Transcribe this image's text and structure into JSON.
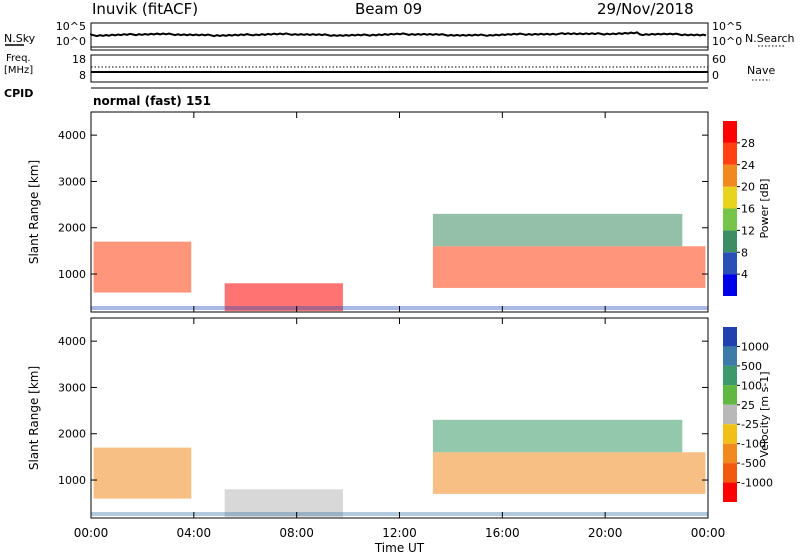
{
  "header": {
    "station": "Inuvik (fitACF)",
    "beam": "Beam 09",
    "date": "29/Nov/2018"
  },
  "summary": {
    "nsky_label": "N.Sky",
    "nsearch_label": "N.Search",
    "freq_label_line1": "Freq.",
    "freq_label_line2": "[MHz]",
    "nave_label": "Nave",
    "cpid_label": "CPID",
    "program": "normal (fast) 151",
    "noise_ticks_left": [
      "10^5",
      "10^0"
    ],
    "noise_ticks_right": [
      "10^5",
      "10^0"
    ],
    "freq_ticks": [
      "18",
      "8"
    ],
    "nave_ticks": [
      "60",
      "0"
    ]
  },
  "chart_data": [
    {
      "type": "heatmap",
      "name": "power",
      "ylabel": "Slant Range [km]",
      "ylim": [
        180,
        4500
      ],
      "yticks": [
        "1000",
        "2000",
        "3000",
        "4000"
      ],
      "colorbar": {
        "label": "Power [dB]",
        "ticks": [
          "4",
          "8",
          "12",
          "16",
          "20",
          "24",
          "28"
        ],
        "range": [
          0,
          32
        ],
        "colors": [
          "#0000e8",
          "#2a50b8",
          "#3c8c64",
          "#76c44a",
          "#e8d41e",
          "#f08a1e",
          "#ff4010",
          "#ff0000"
        ]
      }
    },
    {
      "type": "heatmap",
      "name": "velocity",
      "ylabel": "Slant Range [km]",
      "ylim": [
        180,
        4500
      ],
      "yticks": [
        "1000",
        "2000",
        "3000",
        "4000"
      ],
      "colorbar": {
        "label": "Velocity [m s-1]",
        "ticks": [
          "1000",
          "500",
          "100",
          "25",
          "-25",
          "-100",
          "-500",
          "-1000"
        ],
        "colors": [
          "#2040b0",
          "#3c7aa8",
          "#3c9a6a",
          "#60b840",
          "#b8b8b8",
          "#f0c018",
          "#f08a1e",
          "#f05a10",
          "#ff0000"
        ]
      }
    }
  ],
  "time_axis": {
    "label": "Time UT",
    "ticks": [
      "00:00",
      "04:00",
      "08:00",
      "12:00",
      "16:00",
      "20:00",
      "00:00"
    ],
    "range_hours": [
      0,
      24
    ]
  }
}
